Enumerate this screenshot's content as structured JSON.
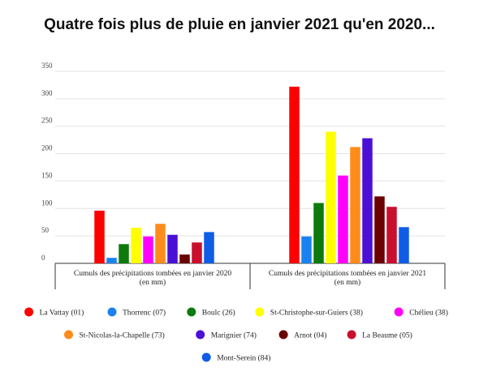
{
  "chart_data": {
    "type": "bar",
    "title": "Quatre fois plus de pluie en janvier 2021 qu'en 2020...",
    "xlabel": "",
    "ylabel": "",
    "ylim": [
      0,
      350
    ],
    "y_ticks": [
      0,
      50,
      100,
      150,
      200,
      250,
      300,
      350
    ],
    "grid": true,
    "legend_position": "bottom",
    "categories": [
      [
        "Cumuls des précipitations tombées en janvier 2020",
        "(en mm)"
      ],
      [
        "Cumuls des précipitations tombées en janvier 2021",
        "(en mm)"
      ]
    ],
    "series": [
      {
        "name": "La Vattay (01)",
        "color": "#ff0000",
        "values": [
          96,
          322
        ]
      },
      {
        "name": "Thorrenc (07)",
        "color": "#1a82f0",
        "values": [
          10,
          49
        ]
      },
      {
        "name": "Boulc (26)",
        "color": "#0c7a0c",
        "values": [
          35,
          110
        ]
      },
      {
        "name": "St-Christophe-sur-Guiers (38)",
        "color": "#ffff00",
        "values": [
          65,
          240
        ]
      },
      {
        "name": "Chélieu (38)",
        "color": "#ff00ff",
        "values": [
          49,
          160
        ]
      },
      {
        "name": "St-Nicolas-la-Chapelle (73)",
        "color": "#ff8c1a",
        "values": [
          72,
          212
        ]
      },
      {
        "name": "Marignier (74)",
        "color": "#4b0fd6",
        "values": [
          52,
          228
        ]
      },
      {
        "name": "Arnot (04)",
        "color": "#6b0000",
        "values": [
          16,
          122
        ]
      },
      {
        "name": "La Beaume (05)",
        "color": "#c8102e",
        "values": [
          38,
          103
        ]
      },
      {
        "name": "Mont-Serein (84)",
        "color": "#0f5ce6",
        "values": [
          57,
          66
        ]
      }
    ]
  }
}
